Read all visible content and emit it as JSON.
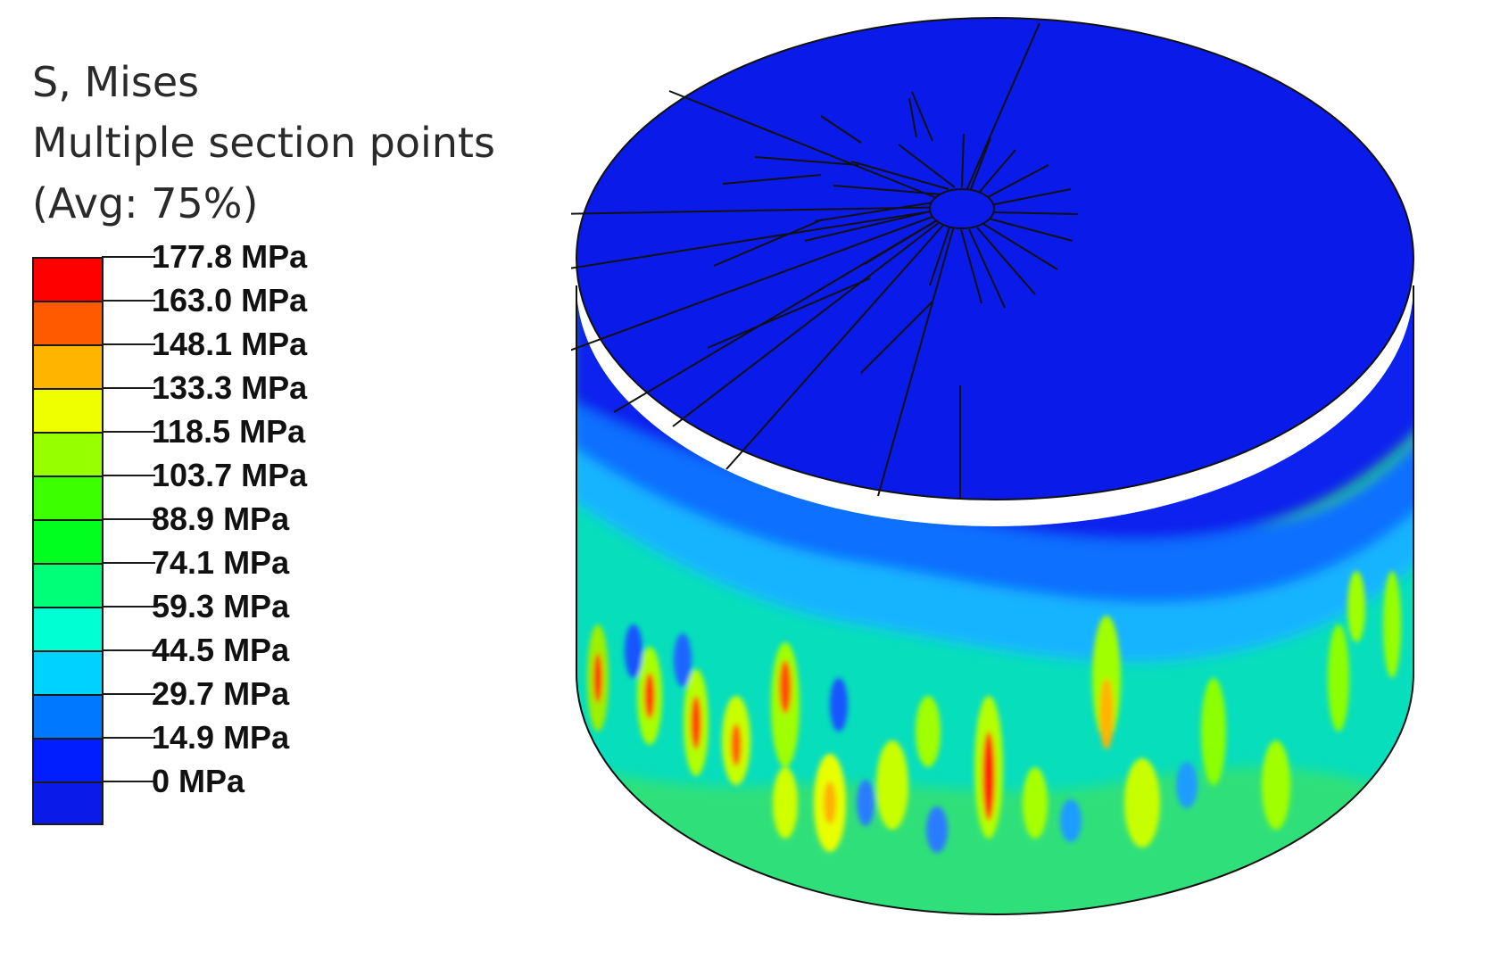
{
  "legend": {
    "title_lines": [
      "S, Mises",
      "Multiple section points",
      "(Avg: 75%)"
    ],
    "levels": [
      {
        "label": "177.8 MPa",
        "color": "#ff0000"
      },
      {
        "label": "163.0 MPa",
        "color": "#ff5a00"
      },
      {
        "label": "148.1 MPa",
        "color": "#ffb400"
      },
      {
        "label": "133.3 MPa",
        "color": "#f0ff00"
      },
      {
        "label": "118.5 MPa",
        "color": "#96ff00"
      },
      {
        "label": "103.7 MPa",
        "color": "#3cff00"
      },
      {
        "label": "88.9 MPa",
        "color": "#00ff1e"
      },
      {
        "label": "74.1 MPa",
        "color": "#00ff78"
      },
      {
        "label": "59.3 MPa",
        "color": "#00ffd2"
      },
      {
        "label": "44.5 MPa",
        "color": "#00d2ff"
      },
      {
        "label": "29.7 MPa",
        "color": "#0078ff"
      },
      {
        "label": "14.9 MPa",
        "color": "#001eff"
      },
      {
        "label": "0 MPa",
        "color": ""
      }
    ]
  }
}
